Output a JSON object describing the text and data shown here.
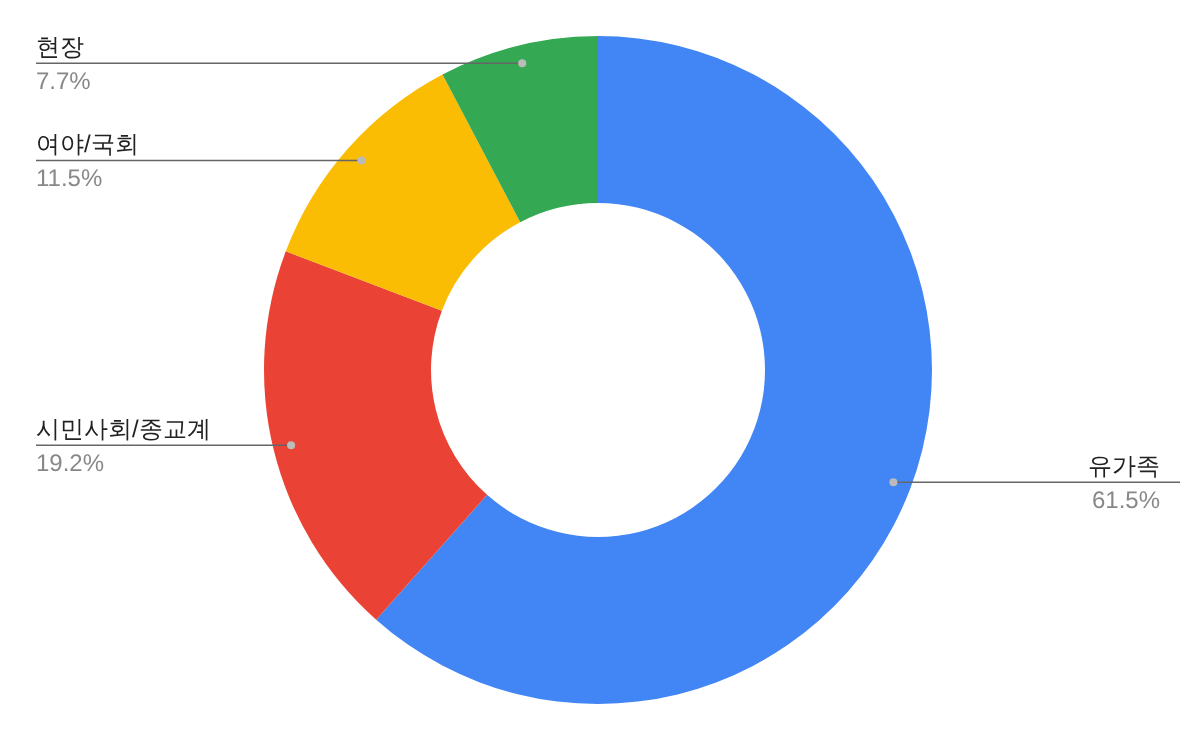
{
  "chart_data": {
    "type": "donut",
    "categories": [
      "유가족",
      "시민사회/종교계",
      "여야/국회",
      "현장"
    ],
    "values": [
      61.5,
      19.2,
      11.5,
      7.7
    ],
    "value_labels": [
      "61.5%",
      "19.2%",
      "11.5%",
      "7.7%"
    ],
    "colors": [
      "#4285f4",
      "#ea4335",
      "#fbbc04",
      "#34a853"
    ]
  }
}
